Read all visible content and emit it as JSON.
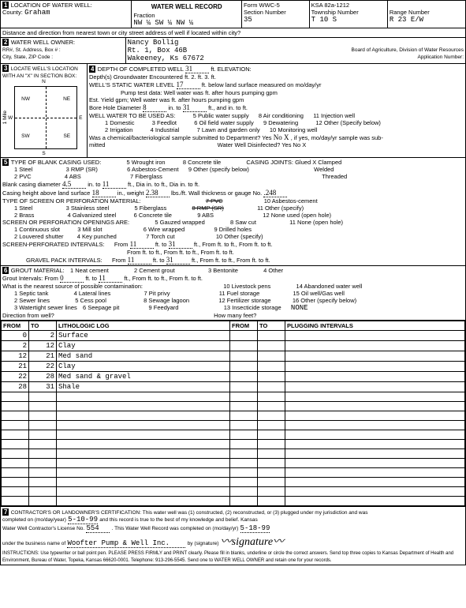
{
  "form_header": "WATER WELL RECORD",
  "form_number": "Form WWC-5",
  "ksa": "KSA 82a-1212",
  "section1": {
    "title": "LOCATION OF WATER WELL:",
    "county_label": "County:",
    "county": "Graham",
    "fraction_label": "Fraction",
    "fraction": "NW ¼   SW ¼   NW ¼",
    "section_num_label": "Section Number",
    "section_num": "35",
    "township_label": "Township Number",
    "township": "T  10  S",
    "range_label": "Range Number",
    "range": "R   23  E/W",
    "distance_label": "Distance and direction from nearest town or city street address of well if located within city?"
  },
  "section2": {
    "title": "WATER WELL OWNER:",
    "owner": "Nancy Bollig",
    "rr_label": "RR#, St. Address, Box # :",
    "address": "Rt. 1, Box 46B",
    "city_label": "City, State, ZIP Code :",
    "city": "Wakeeney, Ks 67672",
    "board": "Board of Agriculture, Division of Water Resources",
    "app_label": "Application Number:"
  },
  "section3": {
    "title": "LOCATE WELL'S LOCATION WITH AN \"X\" IN SECTION BOX:",
    "nw": "NW",
    "ne": "NE",
    "sw": "SW",
    "se": "SE",
    "n": "N",
    "s": "S",
    "e": "E",
    "w": "W",
    "mile": "1 Mile"
  },
  "section4": {
    "title": "DEPTH OF COMPLETED WELL",
    "depth": "31",
    "elev_label": "ft. ELEVATION:",
    "depths_label": "Depth(s) Groundwater Encountered",
    "d1": "ft. 2.",
    "d2": "ft. 3.",
    "d3": "ft.",
    "static_label": "WELL'S STATIC WATER LEVEL",
    "static": "17",
    "static_suffix": "ft. below land surface measured on mo/day/yr",
    "pump_label": "Pump test data:  Well water was",
    "pump2": "ft. after    hours pumping    gpm",
    "est_label": "Est. Yield    gpm; Well water was",
    "est2": "ft. after    hours pumping    gpm",
    "bore_label": "Bore Hole Diameter",
    "bore1": "8",
    "bore1s": "in. to",
    "bore2": "31",
    "bore2s": "ft., and",
    "bore3": "in. to",
    "bore4": "ft.",
    "use_label": "WELL WATER TO BE USED AS:",
    "u1": "1 Domestic",
    "u2": "2 Irrigation",
    "u3": "3 Feedlot",
    "u4": "4 Industrial",
    "u5": "5 Public water supply",
    "u6": "6 Oil field water supply",
    "u7": "7 Lawn and garden only",
    "u8": "8 Air conditioning",
    "u9": "9 Dewatering",
    "u10": "10 Monitoring well",
    "u11": "11 Injection well",
    "u12": "12 Other (Specify below)",
    "sample_label": "Was a chemical/bacteriological sample submitted to Department? Yes",
    "sample_no": "No   X",
    "sample_suffix": ", if yes, mo/day/yr sample was sub-",
    "mitted": "mitted",
    "disinf": "Water Well Disinfected? Yes    No  X"
  },
  "section5": {
    "title": "TYPE OF BLANK CASING USED:",
    "c1": "1 Steel",
    "c2": "2 PVC",
    "c3": "3 RMP (SR)",
    "c4": "4 ABS",
    "c5": "5 Wrought iron",
    "c6": "6 Asbestos-Cement",
    "c7": "7 Fiberglass",
    "c8": "8 Concrete tile",
    "c9": "9 Other (specify below)",
    "joints_label": "CASING JOINTS: Glued   X  Clamped",
    "welded": "Welded",
    "threaded": "Threaded",
    "dia_label": "Blank casing diameter",
    "dia1": "4.5",
    "dia1s": "in. to",
    "dia2": "11",
    "dia3": "ft., Dia",
    "dia4": "in. to",
    "dia5": "ft., Dia",
    "dia6": "in. to",
    "dia7": "ft.",
    "height_label": "Casing height above land surface",
    "height": "18",
    "height2": "in., weight",
    "weight": "2.38",
    "height3": "lbs./ft. Wall thickness or gauge No.",
    "gauge": ".248",
    "screen_label": "TYPE OF SCREEN OR PERFORATION MATERIAL:",
    "s1": "1 Steel",
    "s2": "2 Brass",
    "s3": "3 Stainless steel",
    "s4": "4 Galvanized steel",
    "s5": "5 Fiberglass",
    "s6": "6 Concrete tile",
    "s7": "7 PVC",
    "s8": "8 RMP (SR)",
    "s9": "9 ABS",
    "s10": "10 Asbestos-cement",
    "s11": "11 Other (specify)",
    "s12": "12 None used (open hole)",
    "open_label": "SCREEN OR PERFORATION OPENINGS ARE:",
    "o1": "1 Continuous slot",
    "o2": "2 Louvered shutter",
    "o3": "3 Mill slot",
    "o4": "4 Key punched",
    "o5": "5 Gauzed wrapped",
    "o6": "6 Wire wrapped",
    "o7": "7 Torch cut",
    "o8": "8 Saw cut",
    "o9": "9 Drilled holes",
    "o10": "10 Other (specify)",
    "o11": "11 None (open hole)",
    "perf_label": "SCREEN-PERFORATED INTERVALS:",
    "perf_from": "From",
    "perf_to": "ft. to",
    "p1f": "11",
    "p1t": "31",
    "gravel_label": "GRAVEL PACK INTERVALS:",
    "g1f": "11",
    "g1t": "31"
  },
  "section6": {
    "title": "GROUT MATERIAL:",
    "g1": "1 Neat cement",
    "g2": "2 Cement grout",
    "g3": "3 Bentonite",
    "g4": "4 Other",
    "gi_label": "Grout Intervals:  From",
    "gi_f": "0",
    "gi_t": "ft. to",
    "gi_tv": "11",
    "gi2": "ft., From    ft. to    ft., From    ft. to    ft.",
    "contam_label": "What is the nearest source of possible contamination:",
    "p1": "1 Septic tank",
    "p2": "2 Sewer lines",
    "p3": "3 Watertight sewer lines",
    "p4": "4 Lateral lines",
    "p5": "5 Cess pool",
    "p6": "6 Seepage pit",
    "p7": "7 Pit privy",
    "p8": "8 Sewage lagoon",
    "p9": "9 Feedyard",
    "p10": "10 Livestock pens",
    "p11": "11 Fuel storage",
    "p12": "12 Fertilizer storage",
    "p13": "13 Insecticide storage",
    "p13v": "NONE",
    "p14": "14 Abandoned water well",
    "p15": "15 Oil well/Gas well",
    "p16": "16 Other (specify below)",
    "dir_label": "Direction from well?",
    "feet_label": "How many feet?"
  },
  "log": {
    "h1": "FROM",
    "h2": "TO",
    "h3": "LITHOLOGIC LOG",
    "h4": "FROM",
    "h5": "TO",
    "h6": "PLUGGING INTERVALS",
    "rows": [
      {
        "f": "0",
        "t": "2",
        "d": "Surface"
      },
      {
        "f": "2",
        "t": "12",
        "d": "Clay"
      },
      {
        "f": "12",
        "t": "21",
        "d": "Med sand"
      },
      {
        "f": "21",
        "t": "22",
        "d": "Clay"
      },
      {
        "f": "22",
        "t": "28",
        "d": "Med sand & gravel"
      },
      {
        "f": "28",
        "t": "31",
        "d": "Shale"
      }
    ]
  },
  "section7": {
    "cert": "CONTRACTOR'S OR LANDOWNER'S CERTIFICATION: This water well was (1) constructed, (2) reconstructed, or (3) plugged under my jurisdiction and was",
    "cert2": "completed on (mo/day/year)",
    "date1": "5-10-99",
    "cert3": "and this record is true to the best of my knowledge and belief. Kansas",
    "lic_label": "Water Well Contractor's License No.",
    "lic": "554",
    "cert4": ". This Water Well Record was completed on (mo/day/yr)",
    "date2": "5-18-99",
    "bus_label": "under the business name of",
    "bus": "Woofter Pump & Well Inc.",
    "sig_label": "by (signature)",
    "instr": "INSTRUCTIONS: Use typewriter or ball point pen. PLEASE PRESS FIRMLY and PRINT clearly. Please fill in blanks, underline or circle the correct answers. Send top three copies to Kansas Department of Health and Environment, Bureau of Water, Topeka, Kansas 66620-0001. Telephone: 913-296-5545. Send one to WATER WELL OWNER and retain one for your records."
  }
}
